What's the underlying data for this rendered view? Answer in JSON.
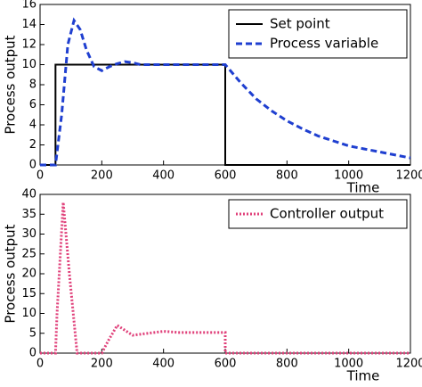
{
  "chart_data": [
    {
      "type": "line",
      "xlabel": "Time",
      "ylabel": "Process output",
      "xlim": [
        0,
        1200
      ],
      "xticks": [
        0,
        200,
        400,
        600,
        800,
        1000,
        1200
      ],
      "ylim": [
        0,
        16
      ],
      "yticks": [
        0,
        2,
        4,
        6,
        8,
        10,
        12,
        14,
        16
      ],
      "legend": "upper right",
      "series": [
        {
          "name": "Set point",
          "color": "#000000",
          "style": "solid",
          "x": [
            0,
            50,
            50,
            600,
            600,
            1200
          ],
          "values": [
            0,
            0,
            10,
            10,
            0,
            0
          ]
        },
        {
          "name": "Process variable",
          "color": "#1f3fd0",
          "style": "dashed",
          "x": [
            0,
            50,
            70,
            90,
            110,
            130,
            150,
            175,
            200,
            225,
            250,
            275,
            300,
            325,
            350,
            400,
            500,
            600,
            650,
            700,
            750,
            800,
            850,
            900,
            950,
            1000,
            1050,
            1100,
            1150,
            1200
          ],
          "values": [
            0,
            0,
            5,
            12,
            14.4,
            13.5,
            11.5,
            9.8,
            9.4,
            9.8,
            10.1,
            10.3,
            10.2,
            10,
            10,
            10,
            10,
            10,
            8.2,
            6.6,
            5.4,
            4.4,
            3.6,
            2.9,
            2.4,
            1.9,
            1.6,
            1.3,
            1.0,
            0.7
          ]
        }
      ]
    },
    {
      "type": "line",
      "xlabel": "Time",
      "ylabel": "Process output",
      "xlim": [
        0,
        1200
      ],
      "xticks": [
        0,
        200,
        400,
        600,
        800,
        1000,
        1200
      ],
      "ylim": [
        0,
        40
      ],
      "yticks": [
        0,
        5,
        10,
        15,
        20,
        25,
        30,
        35,
        40
      ],
      "legend": "upper right",
      "series": [
        {
          "name": "Controller output",
          "color": "#e0407a",
          "style": "dotted",
          "x": [
            0,
            50,
            55,
            75,
            95,
            120,
            200,
            220,
            250,
            280,
            300,
            350,
            400,
            450,
            500,
            600,
            600,
            1200
          ],
          "values": [
            0,
            0,
            10,
            38,
            20,
            0,
            0,
            3,
            7,
            5.5,
            4.5,
            5,
            5.5,
            5.2,
            5.2,
            5.2,
            0,
            0
          ]
        }
      ]
    }
  ]
}
